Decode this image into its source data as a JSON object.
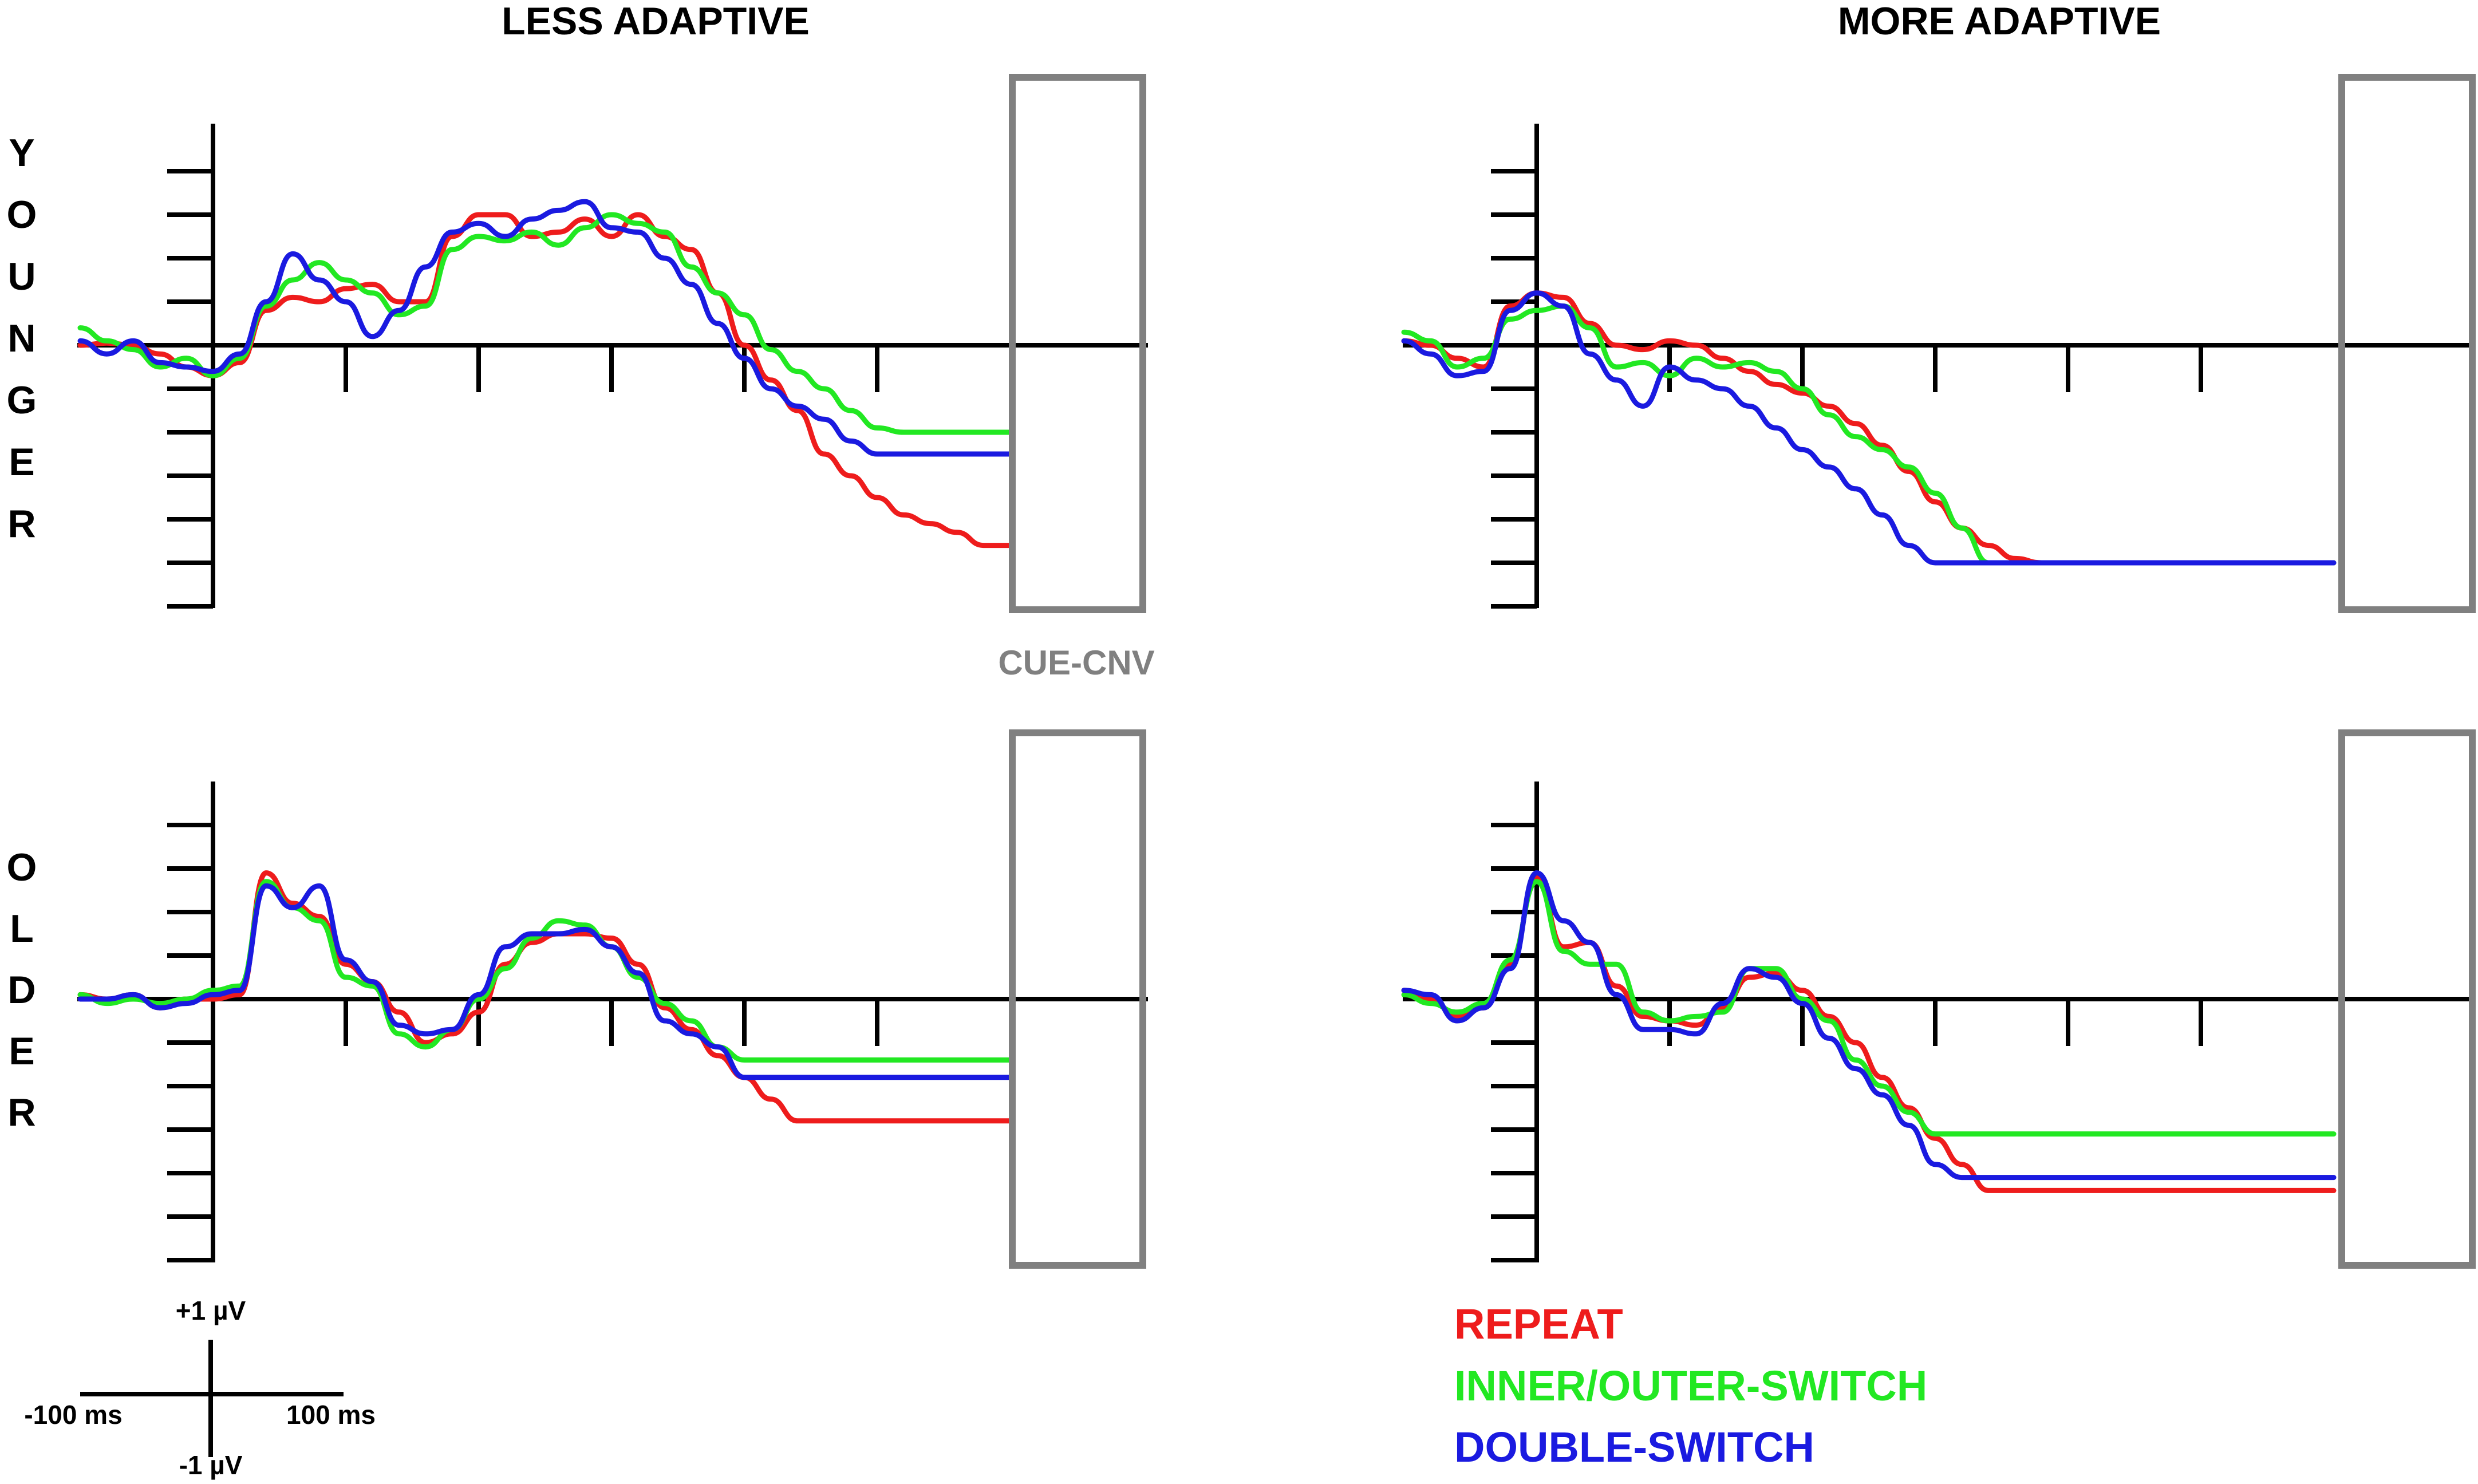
{
  "columns": [
    "LESS ADAPTIVE",
    "MORE ADAPTIVE"
  ],
  "rows": [
    {
      "letters": [
        "Y",
        "O",
        "U",
        "N",
        "G",
        "E",
        "R"
      ]
    },
    {
      "letters": [
        "O",
        "L",
        "D",
        "E",
        "R"
      ]
    }
  ],
  "window_label": "CUE-CNV",
  "scale": {
    "top": "+1 µV",
    "bottom": "-1 µV",
    "left": "-100 ms",
    "right": "100 ms"
  },
  "legend": [
    {
      "label": "REPEAT",
      "color": "#ee1c1c"
    },
    {
      "label": "INNER/OUTER-SWITCH",
      "color": "#22e822"
    },
    {
      "label": "DOUBLE-SWITCH",
      "color": "#1a1ae0"
    }
  ],
  "chart_data": [
    {
      "type": "line",
      "panel": "younger-less-adaptive",
      "xlim": [
        -100,
        600
      ],
      "ylim": [
        -6,
        5
      ],
      "series": [
        {
          "name": "REPEAT",
          "color": "#ee1c1c",
          "x": [
            -100,
            -80,
            -60,
            -40,
            -20,
            0,
            20,
            40,
            60,
            80,
            100,
            120,
            140,
            160,
            180,
            200,
            220,
            240,
            260,
            280,
            300,
            320,
            340,
            360,
            380,
            400,
            420,
            440,
            460,
            480,
            500,
            520,
            540,
            560,
            580,
            600
          ],
          "y": [
            0,
            0.05,
            0,
            -0.2,
            -0.5,
            -0.7,
            -0.4,
            0.8,
            1.1,
            1.0,
            1.3,
            1.4,
            1.0,
            1.0,
            2.5,
            3.0,
            3.0,
            2.5,
            2.6,
            2.9,
            2.5,
            3.0,
            2.5,
            2.2,
            1.2,
            0.0,
            -0.8,
            -1.5,
            -2.5,
            -3.0,
            -3.5,
            -3.9,
            -4.1,
            -4.3,
            -4.6,
            -4.6
          ]
        },
        {
          "name": "INNER/OUTER-SWITCH",
          "color": "#22e822",
          "x": [
            -100,
            -80,
            -60,
            -40,
            -20,
            0,
            20,
            40,
            60,
            80,
            100,
            120,
            140,
            160,
            180,
            200,
            220,
            240,
            260,
            280,
            300,
            320,
            340,
            360,
            380,
            400,
            420,
            440,
            460,
            480,
            500,
            520,
            540,
            560,
            580,
            600
          ],
          "y": [
            0.4,
            0.1,
            -0.1,
            -0.5,
            -0.3,
            -0.7,
            -0.3,
            0.9,
            1.5,
            1.9,
            1.5,
            1.2,
            0.7,
            0.9,
            2.2,
            2.5,
            2.4,
            2.6,
            2.3,
            2.7,
            3.0,
            2.8,
            2.6,
            1.8,
            1.2,
            0.7,
            -0.1,
            -0.6,
            -1.0,
            -1.5,
            -1.9,
            -2.0,
            -2.0,
            -2.0,
            -2.0,
            -2.0
          ]
        },
        {
          "name": "DOUBLE-SWITCH",
          "color": "#1a1ae0",
          "x": [
            -100,
            -80,
            -60,
            -40,
            -20,
            0,
            20,
            40,
            60,
            80,
            100,
            120,
            140,
            160,
            180,
            200,
            220,
            240,
            260,
            280,
            300,
            320,
            340,
            360,
            380,
            400,
            420,
            440,
            460,
            480,
            500,
            520,
            540,
            560,
            580,
            600
          ],
          "y": [
            0.1,
            -0.2,
            0.1,
            -0.4,
            -0.5,
            -0.6,
            -0.2,
            1.0,
            2.1,
            1.5,
            1.0,
            0.2,
            0.8,
            1.8,
            2.6,
            2.8,
            2.5,
            2.9,
            3.1,
            3.3,
            2.7,
            2.6,
            2.0,
            1.4,
            0.5,
            -0.3,
            -1.0,
            -1.4,
            -1.7,
            -2.2,
            -2.5,
            -2.5,
            -2.5,
            -2.5,
            -2.5,
            -2.5
          ]
        }
      ]
    },
    {
      "type": "line",
      "panel": "younger-more-adaptive",
      "xlim": [
        -100,
        600
      ],
      "ylim": [
        -6,
        5
      ],
      "series": [
        {
          "name": "REPEAT",
          "color": "#ee1c1c",
          "x": [
            -100,
            -80,
            -60,
            -40,
            -20,
            0,
            20,
            40,
            60,
            80,
            100,
            120,
            140,
            160,
            180,
            200,
            220,
            240,
            260,
            280,
            300,
            320,
            340,
            360,
            380,
            400,
            420,
            440,
            460,
            480,
            500,
            520,
            540,
            560,
            580,
            600
          ],
          "y": [
            0.1,
            0.0,
            -0.3,
            -0.5,
            0.9,
            1.2,
            1.1,
            0.5,
            0.0,
            -0.1,
            0.1,
            0.0,
            -0.3,
            -0.6,
            -0.9,
            -1.1,
            -1.4,
            -1.8,
            -2.3,
            -2.9,
            -3.6,
            -4.2,
            -4.6,
            -4.9,
            -5.0,
            -5.0,
            -5.0,
            -5.0,
            -5.0,
            -5.0,
            -5.0,
            -5.0,
            -5.0,
            -5.0,
            -5.0,
            -5.0
          ]
        },
        {
          "name": "INNER/OUTER-SWITCH",
          "color": "#22e822",
          "x": [
            -100,
            -80,
            -60,
            -40,
            -20,
            0,
            20,
            40,
            60,
            80,
            100,
            120,
            140,
            160,
            180,
            200,
            220,
            240,
            260,
            280,
            300,
            320,
            340,
            360,
            380,
            400,
            420,
            440,
            460,
            480,
            500,
            520,
            540,
            560,
            580,
            600
          ],
          "y": [
            0.3,
            0.1,
            -0.5,
            -0.3,
            0.6,
            0.8,
            0.9,
            0.4,
            -0.5,
            -0.4,
            -0.7,
            -0.3,
            -0.5,
            -0.4,
            -0.6,
            -1.0,
            -1.6,
            -2.1,
            -2.4,
            -2.8,
            -3.4,
            -4.2,
            -5.0,
            -5.0,
            -5.0,
            -5.0,
            -5.0,
            -5.0,
            -5.0,
            -5.0,
            -5.0,
            -5.0,
            -5.0,
            -5.0,
            -5.0,
            -5.0
          ]
        },
        {
          "name": "DOUBLE-SWITCH",
          "color": "#1a1ae0",
          "x": [
            -100,
            -80,
            -60,
            -40,
            -20,
            0,
            20,
            40,
            60,
            80,
            100,
            120,
            140,
            160,
            180,
            200,
            220,
            240,
            260,
            280,
            300,
            320,
            340,
            360,
            380,
            400,
            420,
            440,
            460,
            480,
            500,
            520,
            540,
            560,
            580,
            600
          ],
          "y": [
            0.1,
            -0.2,
            -0.7,
            -0.6,
            0.8,
            1.2,
            0.9,
            -0.2,
            -0.8,
            -1.4,
            -0.5,
            -0.8,
            -1.0,
            -1.4,
            -1.9,
            -2.4,
            -2.8,
            -3.3,
            -3.9,
            -4.6,
            -5.0,
            -5.0,
            -5.0,
            -5.0,
            -5.0,
            -5.0,
            -5.0,
            -5.0,
            -5.0,
            -5.0,
            -5.0,
            -5.0,
            -5.0,
            -5.0,
            -5.0,
            -5.0
          ]
        }
      ]
    },
    {
      "type": "line",
      "panel": "older-less-adaptive",
      "xlim": [
        -100,
        600
      ],
      "ylim": [
        -6,
        5
      ],
      "series": [
        {
          "name": "REPEAT",
          "color": "#ee1c1c",
          "x": [
            -100,
            -80,
            -60,
            -40,
            -20,
            0,
            20,
            40,
            60,
            80,
            100,
            120,
            140,
            160,
            180,
            200,
            220,
            240,
            260,
            280,
            300,
            320,
            340,
            360,
            380,
            400,
            420,
            440,
            460,
            480,
            500,
            520,
            540,
            560,
            580,
            600
          ],
          "y": [
            0.1,
            0,
            0.1,
            -0.2,
            0,
            0,
            0.1,
            2.9,
            2.2,
            1.9,
            0.8,
            0.4,
            -0.3,
            -1.0,
            -0.8,
            -0.3,
            0.8,
            1.3,
            1.5,
            1.5,
            1.4,
            0.8,
            -0.2,
            -0.7,
            -1.3,
            -1.8,
            -2.3,
            -2.8,
            -2.8,
            -2.8,
            -2.8,
            -2.8,
            -2.8,
            -2.8,
            -2.8,
            -2.8
          ]
        },
        {
          "name": "INNER/OUTER-SWITCH",
          "color": "#22e822",
          "x": [
            -100,
            -80,
            -60,
            -40,
            -20,
            0,
            20,
            40,
            60,
            80,
            100,
            120,
            140,
            160,
            180,
            200,
            220,
            240,
            260,
            280,
            300,
            320,
            340,
            360,
            380,
            400,
            420,
            440,
            460,
            480,
            500,
            520,
            540,
            560,
            580,
            600
          ],
          "y": [
            0.1,
            -0.1,
            0,
            -0.1,
            0,
            0.2,
            0.3,
            2.7,
            2.1,
            1.8,
            0.5,
            0.3,
            -0.8,
            -1.1,
            -0.7,
            0.0,
            0.7,
            1.4,
            1.8,
            1.7,
            1.2,
            0.5,
            -0.1,
            -0.5,
            -1.1,
            -1.4,
            -1.4,
            -1.4,
            -1.4,
            -1.4,
            -1.4,
            -1.4,
            -1.4,
            -1.4,
            -1.4,
            -1.4
          ]
        },
        {
          "name": "DOUBLE-SWITCH",
          "color": "#1a1ae0",
          "x": [
            -100,
            -80,
            -60,
            -40,
            -20,
            0,
            20,
            40,
            60,
            80,
            100,
            120,
            140,
            160,
            180,
            200,
            220,
            240,
            260,
            280,
            300,
            320,
            340,
            360,
            380,
            400,
            420,
            440,
            460,
            480,
            500,
            520,
            540,
            560,
            580,
            600
          ],
          "y": [
            0,
            0,
            0.1,
            -0.2,
            -0.1,
            0.1,
            0.2,
            2.6,
            2.1,
            2.6,
            0.9,
            0.4,
            -0.6,
            -0.8,
            -0.7,
            0.1,
            1.2,
            1.5,
            1.5,
            1.6,
            1.2,
            0.6,
            -0.5,
            -0.8,
            -1.1,
            -1.8,
            -1.8,
            -1.8,
            -1.8,
            -1.8,
            -1.8,
            -1.8,
            -1.8,
            -1.8,
            -1.8,
            -1.8
          ]
        }
      ]
    },
    {
      "type": "line",
      "panel": "older-more-adaptive",
      "xlim": [
        -100,
        600
      ],
      "ylim": [
        -6,
        5
      ],
      "series": [
        {
          "name": "REPEAT",
          "color": "#ee1c1c",
          "x": [
            -100,
            -80,
            -60,
            -40,
            -20,
            0,
            20,
            40,
            60,
            80,
            100,
            120,
            140,
            160,
            180,
            200,
            220,
            240,
            260,
            280,
            300,
            320,
            340,
            360,
            380,
            400,
            420,
            440,
            460,
            480,
            500,
            520,
            540,
            560,
            580,
            600
          ],
          "y": [
            0.2,
            0.0,
            -0.4,
            -0.2,
            0.8,
            2.8,
            1.2,
            1.3,
            0.3,
            -0.4,
            -0.5,
            -0.6,
            -0.2,
            0.5,
            0.6,
            0.2,
            -0.4,
            -1.0,
            -1.8,
            -2.5,
            -3.2,
            -3.8,
            -4.4,
            -4.4,
            -4.4,
            -4.4,
            -4.4,
            -4.4,
            -4.4,
            -4.4,
            -4.4,
            -4.4,
            -4.4,
            -4.4,
            -4.4,
            -4.4
          ]
        },
        {
          "name": "INNER/OUTER-SWITCH",
          "color": "#22e822",
          "x": [
            -100,
            -80,
            -60,
            -40,
            -20,
            0,
            20,
            40,
            60,
            80,
            100,
            120,
            140,
            160,
            180,
            200,
            220,
            240,
            260,
            280,
            300,
            320,
            340,
            360,
            380,
            400,
            420,
            440,
            460,
            480,
            500,
            520,
            540,
            560,
            580,
            600
          ],
          "y": [
            0.1,
            -0.1,
            -0.3,
            -0.1,
            0.9,
            2.7,
            1.1,
            0.8,
            0.8,
            -0.3,
            -0.5,
            -0.4,
            -0.3,
            0.7,
            0.7,
            0.0,
            -0.5,
            -1.4,
            -2.0,
            -2.6,
            -3.1,
            -3.1,
            -3.1,
            -3.1,
            -3.1,
            -3.1,
            -3.1,
            -3.1,
            -3.1,
            -3.1,
            -3.1,
            -3.1,
            -3.1,
            -3.1,
            -3.1,
            -3.1
          ]
        },
        {
          "name": "DOUBLE-SWITCH",
          "color": "#1a1ae0",
          "x": [
            -100,
            -80,
            -60,
            -40,
            -20,
            0,
            20,
            40,
            60,
            80,
            100,
            120,
            140,
            160,
            180,
            200,
            220,
            240,
            260,
            280,
            300,
            320,
            340,
            360,
            380,
            400,
            420,
            440,
            460,
            480,
            500,
            520,
            540,
            560,
            580,
            600
          ],
          "y": [
            0.2,
            0.1,
            -0.5,
            -0.2,
            0.7,
            2.9,
            1.8,
            1.3,
            0.1,
            -0.7,
            -0.7,
            -0.8,
            -0.1,
            0.7,
            0.5,
            -0.1,
            -0.9,
            -1.6,
            -2.2,
            -2.9,
            -3.8,
            -4.1,
            -4.1,
            -4.1,
            -4.1,
            -4.1,
            -4.1,
            -4.1,
            -4.1,
            -4.1,
            -4.1,
            -4.1,
            -4.1,
            -4.1,
            -4.1,
            -4.1
          ]
        }
      ]
    }
  ]
}
